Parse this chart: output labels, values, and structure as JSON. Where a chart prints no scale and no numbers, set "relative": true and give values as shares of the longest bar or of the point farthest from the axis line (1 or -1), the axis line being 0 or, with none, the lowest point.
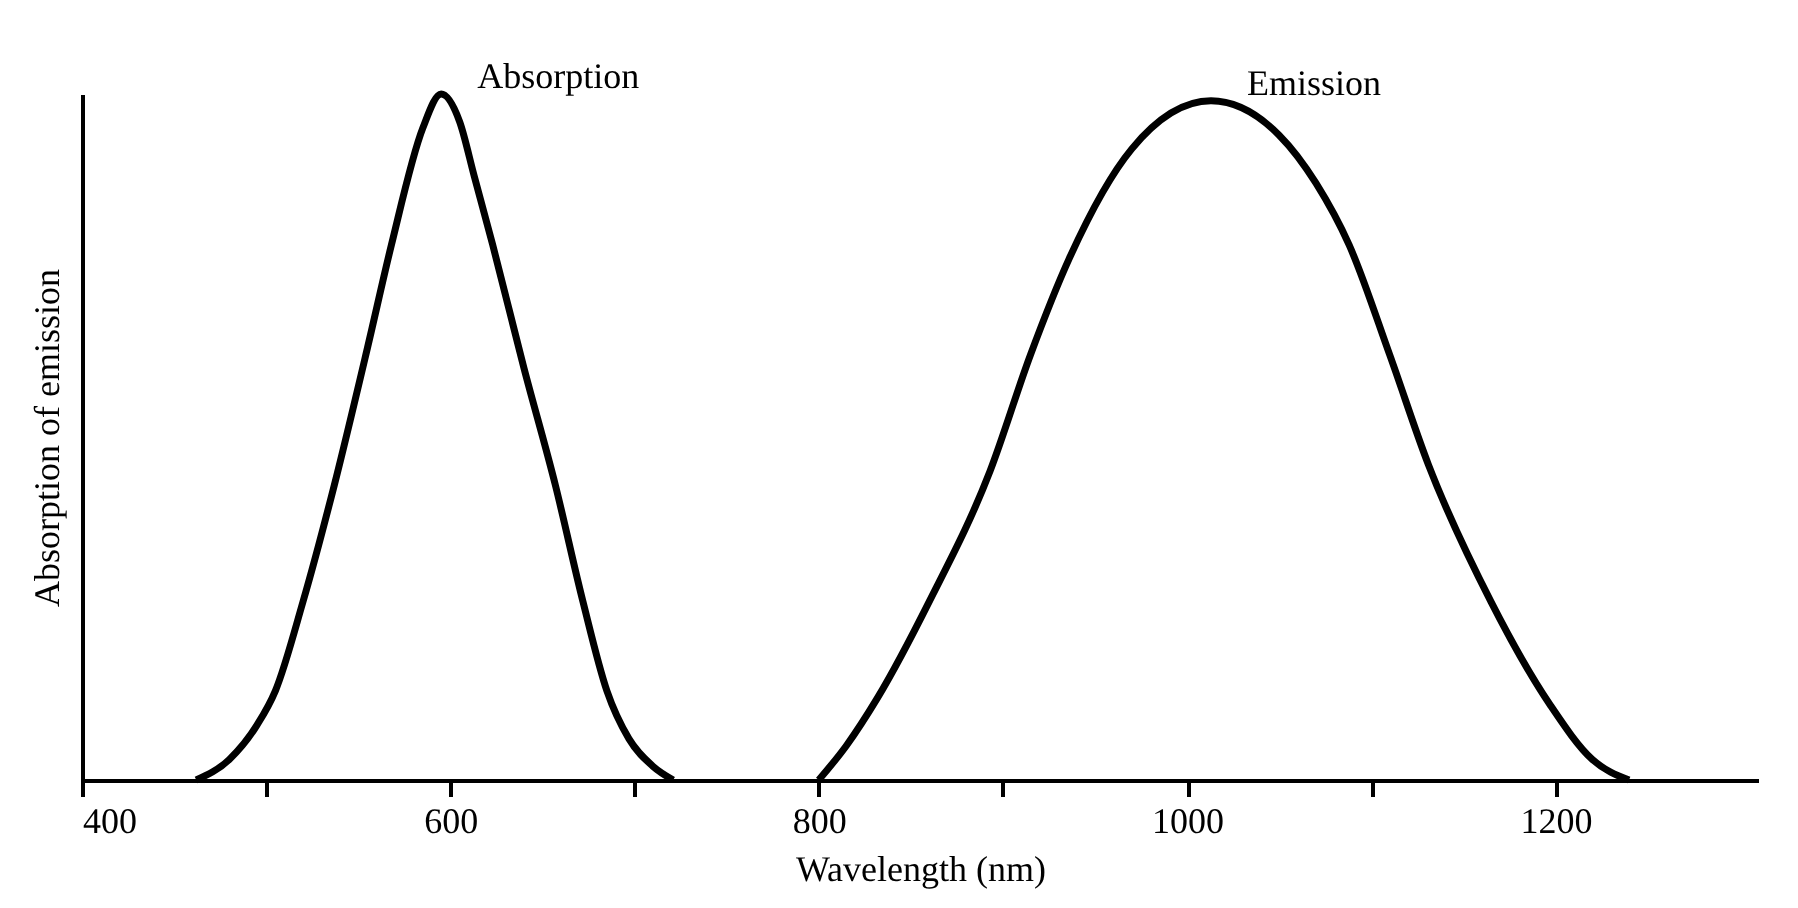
{
  "chart_data": {
    "type": "line",
    "relative": true,
    "xlabel": "Wavelength (nm)",
    "ylabel": "Absorption of emission",
    "xlim": [
      400,
      1310
    ],
    "xticks": [
      400,
      {
        "value": 500,
        "label": null
      },
      600,
      {
        "value": 700,
        "label": null
      },
      800,
      {
        "value": 900,
        "label": null
      },
      1000,
      {
        "value": 1100,
        "label": null
      },
      1200
    ],
    "grid": false,
    "tick_labels": "x",
    "marker": "none",
    "line_style": "solid",
    "series": [
      {
        "name": "Absorption",
        "color": "#000000",
        "x": [
          462,
          480,
          495,
          505,
          520,
          537,
          555,
          568,
          585,
          595,
          605,
          613,
          623,
          640,
          657,
          672,
          685,
          697,
          710,
          721
        ],
        "values": [
          0,
          0.03,
          0.08,
          0.13,
          0.26,
          0.43,
          0.63,
          0.78,
          0.95,
          1.0,
          0.96,
          0.88,
          0.78,
          0.6,
          0.43,
          0.26,
          0.13,
          0.06,
          0.02,
          0
        ]
      },
      {
        "name": "Emission",
        "color": "#000000",
        "x": [
          800,
          815,
          832,
          860,
          893,
          915,
          936,
          970,
          1013,
          1050,
          1070,
          1088,
          1110,
          1131,
          1165,
          1197,
          1220,
          1240
        ],
        "values": [
          0,
          0.05,
          0.12,
          0.26,
          0.45,
          0.62,
          0.76,
          0.92,
          0.99,
          0.94,
          0.87,
          0.78,
          0.62,
          0.46,
          0.26,
          0.11,
          0.03,
          0
        ]
      }
    ]
  }
}
